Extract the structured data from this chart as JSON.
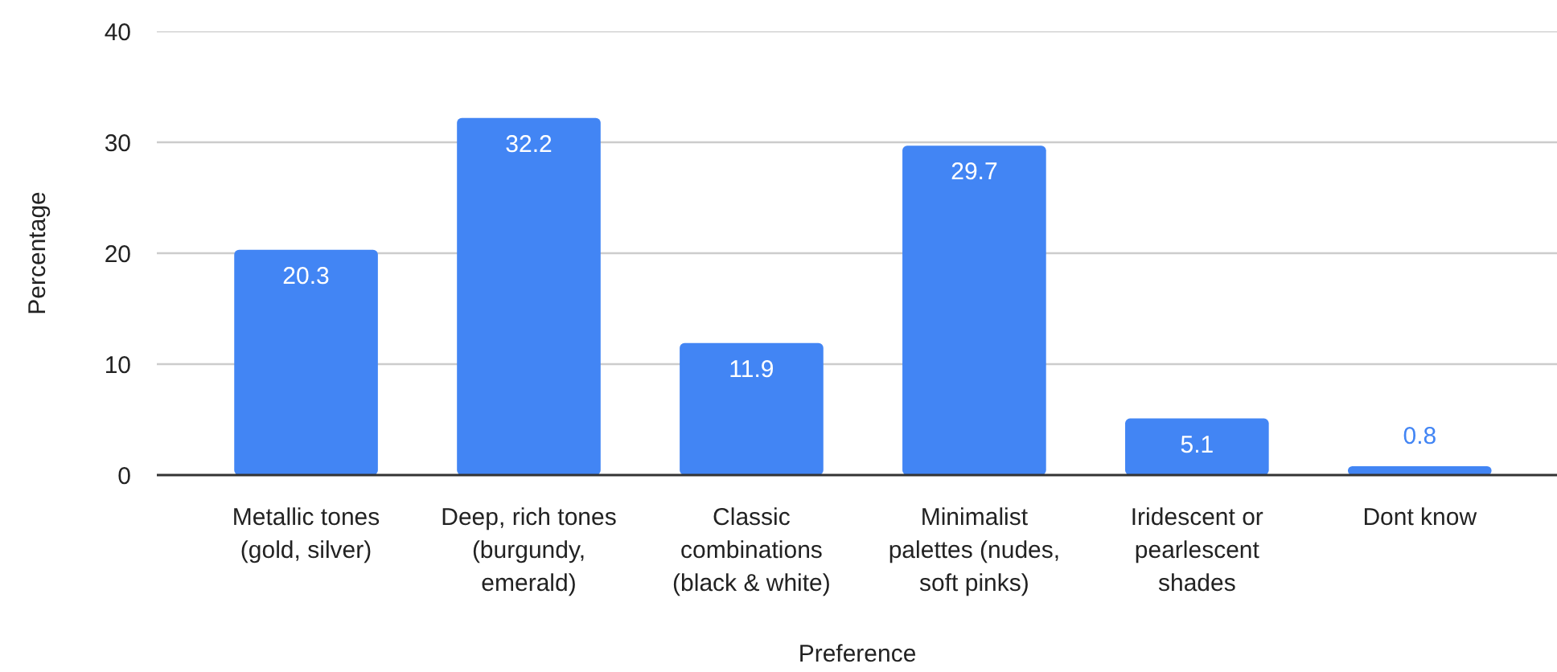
{
  "chart_data": {
    "type": "bar",
    "xlabel": "Preference",
    "ylabel": "Percentage",
    "categories": [
      "Metallic tones (gold, silver)",
      "Deep, rich tones (burgundy, emerald)",
      "Classic combinations (black & white)",
      "Minimalist palettes (nudes, soft pinks)",
      "Iridescent or pearlescent shades",
      "Dont know"
    ],
    "values": [
      20.3,
      32.2,
      11.9,
      29.7,
      5.1,
      0.8
    ],
    "color": "#4285f4",
    "ylim": [
      0,
      40
    ],
    "yticks": [
      0,
      10,
      20,
      30,
      40
    ],
    "grid": "y",
    "data_labels": true
  }
}
